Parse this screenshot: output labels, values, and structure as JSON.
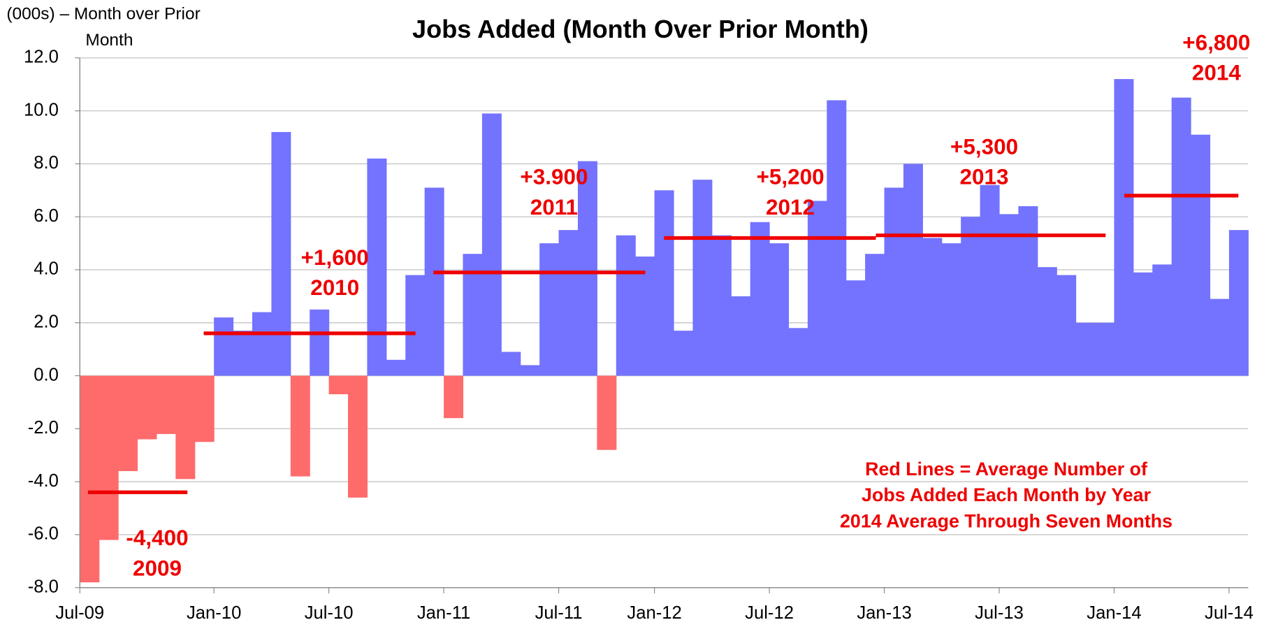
{
  "chart_data": {
    "type": "bar",
    "title": "Jobs Added (Month Over Prior Month)",
    "y_label": [
      "(000s) – Month over Prior",
      "Month"
    ],
    "categories": [
      "Jul-09",
      null,
      null,
      null,
      null,
      null,
      null,
      "Jan-10",
      null,
      null,
      null,
      null,
      null,
      "Jul-10",
      null,
      null,
      null,
      null,
      null,
      "Jan-11",
      null,
      null,
      null,
      null,
      null,
      "Jul-11",
      null,
      null,
      null,
      null,
      "Jan-12",
      null,
      null,
      null,
      null,
      null,
      "Jul-12",
      null,
      null,
      null,
      null,
      null,
      "Jan-13",
      null,
      null,
      null,
      null,
      null,
      "Jul-13",
      null,
      null,
      null,
      null,
      null,
      "Jan-14",
      null,
      null,
      null,
      null,
      null,
      "Jul-14"
    ],
    "values": [
      -7.8,
      -6.2,
      -3.6,
      -2.4,
      -2.2,
      -3.9,
      -2.5,
      2.2,
      1.7,
      2.4,
      9.2,
      -3.8,
      2.5,
      -0.7,
      -4.6,
      8.2,
      0.6,
      3.8,
      7.1,
      -1.6,
      4.6,
      9.9,
      0.9,
      0.4,
      5.0,
      5.5,
      8.1,
      -2.8,
      5.3,
      4.5,
      7.0,
      1.7,
      7.4,
      5.3,
      3.0,
      5.8,
      5.0,
      1.8,
      6.6,
      10.4,
      3.6,
      4.6,
      7.1,
      8.0,
      5.2,
      5.0,
      6.0,
      7.2,
      6.1,
      6.4,
      4.1,
      3.8,
      2.0,
      2.0,
      11.2,
      3.9,
      4.2,
      10.5,
      9.1,
      2.9,
      5.5
    ],
    "color": "#7373ff",
    "negative_color": "#ff6b6b",
    "averages": {
      "values": [
        -4.4,
        1.6,
        3.9,
        5.2,
        5.3,
        6.8
      ],
      "value_labels": [
        "-4,400",
        "+1,600",
        "+3.900",
        "+5,200",
        "+5,300",
        "+6,800"
      ],
      "years": [
        "2009",
        "2010",
        "2011",
        "2012",
        "2013",
        "2014"
      ],
      "color": "#ee0000"
    },
    "note": [
      "Red Lines = Average Number of",
      "Jobs Added Each Month by Year",
      "2014 Average Through Seven Months"
    ],
    "ylim": [
      -8,
      12
    ],
    "yticks": [
      {
        "value": -8,
        "label": "-8.0"
      },
      {
        "value": -6,
        "label": "-6.0"
      },
      {
        "value": -4,
        "label": "-4.0"
      },
      {
        "value": -2,
        "label": "-2.0"
      },
      {
        "value": 0,
        "label": "0.0"
      },
      {
        "value": 2,
        "label": "2.0"
      },
      {
        "value": 4,
        "label": "4.0"
      },
      {
        "value": 6,
        "label": "6.0"
      },
      {
        "value": 8,
        "label": "8.0"
      },
      {
        "value": 10,
        "label": "10.0"
      },
      {
        "value": 12,
        "label": "12.0"
      }
    ],
    "grid": true
  }
}
